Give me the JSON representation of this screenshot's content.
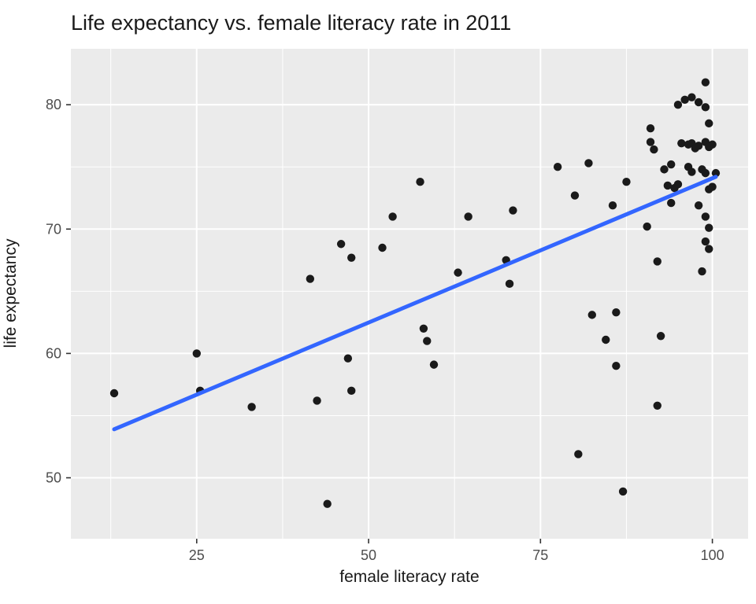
{
  "chart_data": {
    "type": "scatter",
    "title": "Life expectancy vs. female literacy rate in 2011",
    "xlabel": "female literacy rate",
    "ylabel": "life expectancy",
    "xlim": [
      6.7,
      105.2
    ],
    "ylim": [
      45.1,
      84.5
    ],
    "x_ticks": [
      "25",
      "50",
      "75",
      "100"
    ],
    "x_tick_values": [
      25,
      50,
      75,
      100
    ],
    "y_ticks": [
      "50",
      "60",
      "70",
      "80"
    ],
    "y_tick_values": [
      50,
      60,
      70,
      80
    ],
    "x_minor": [
      12.5,
      37.5,
      62.5,
      87.5
    ],
    "y_minor": [
      55,
      65,
      75
    ],
    "legend": "none",
    "grid": "white major and minor gridlines on gray panel",
    "panel_bg": "#ebebeb",
    "grid_color": "#ffffff",
    "point_color": "#1a1a1a",
    "tick_color": "#333333",
    "trend": {
      "color": "#3366ff",
      "width": 5,
      "x1": 13,
      "y1": 53.9,
      "x2": 100.5,
      "y2": 74.2
    },
    "points": [
      [
        13,
        56.8
      ],
      [
        25,
        60.0
      ],
      [
        25.5,
        57.0
      ],
      [
        33,
        55.7
      ],
      [
        41.5,
        66.0
      ],
      [
        42.5,
        56.2
      ],
      [
        44,
        47.9
      ],
      [
        46,
        68.8
      ],
      [
        47.5,
        67.7
      ],
      [
        47,
        59.6
      ],
      [
        47.5,
        57.0
      ],
      [
        52,
        68.5
      ],
      [
        53.5,
        71.0
      ],
      [
        57.5,
        73.8
      ],
      [
        58,
        62.0
      ],
      [
        58.5,
        61.0
      ],
      [
        59.5,
        59.1
      ],
      [
        63,
        66.5
      ],
      [
        64.5,
        71.0
      ],
      [
        70,
        67.5
      ],
      [
        70.5,
        65.6
      ],
      [
        71,
        71.5
      ],
      [
        77.5,
        75.0
      ],
      [
        80,
        72.7
      ],
      [
        80.5,
        51.9
      ],
      [
        82,
        75.3
      ],
      [
        82.5,
        63.1
      ],
      [
        84.5,
        61.1
      ],
      [
        85.5,
        71.9
      ],
      [
        86,
        63.3
      ],
      [
        86,
        59.0
      ],
      [
        87.5,
        73.8
      ],
      [
        87,
        48.9
      ],
      [
        91,
        78.1
      ],
      [
        91,
        77.0
      ],
      [
        91.5,
        76.4
      ],
      [
        90.5,
        70.2
      ],
      [
        92,
        67.4
      ],
      [
        92.5,
        61.4
      ],
      [
        92,
        55.8
      ],
      [
        93,
        74.8
      ],
      [
        93.5,
        73.5
      ],
      [
        94,
        75.2
      ],
      [
        94.5,
        73.3
      ],
      [
        94,
        72.1
      ],
      [
        95,
        80.0
      ],
      [
        95.5,
        76.9
      ],
      [
        95,
        73.6
      ],
      [
        96,
        80.4
      ],
      [
        96.5,
        76.8
      ],
      [
        97,
        80.6
      ],
      [
        97,
        76.9
      ],
      [
        96.5,
        75.0
      ],
      [
        97,
        74.6
      ],
      [
        97.5,
        76.5
      ],
      [
        98,
        80.2
      ],
      [
        98,
        76.7
      ],
      [
        98.5,
        74.8
      ],
      [
        98,
        71.9
      ],
      [
        98.5,
        66.6
      ],
      [
        99,
        81.8
      ],
      [
        99,
        79.8
      ],
      [
        99.5,
        78.5
      ],
      [
        99,
        77.0
      ],
      [
        99.5,
        76.6
      ],
      [
        99,
        74.5
      ],
      [
        99.5,
        73.2
      ],
      [
        99,
        71.0
      ],
      [
        99.5,
        70.1
      ],
      [
        99,
        69.0
      ],
      [
        99.5,
        68.4
      ],
      [
        100,
        76.8
      ],
      [
        100,
        73.4
      ],
      [
        100.5,
        74.5
      ]
    ]
  },
  "layout_note": "ggplot2-style scatter plot with linear trend line"
}
